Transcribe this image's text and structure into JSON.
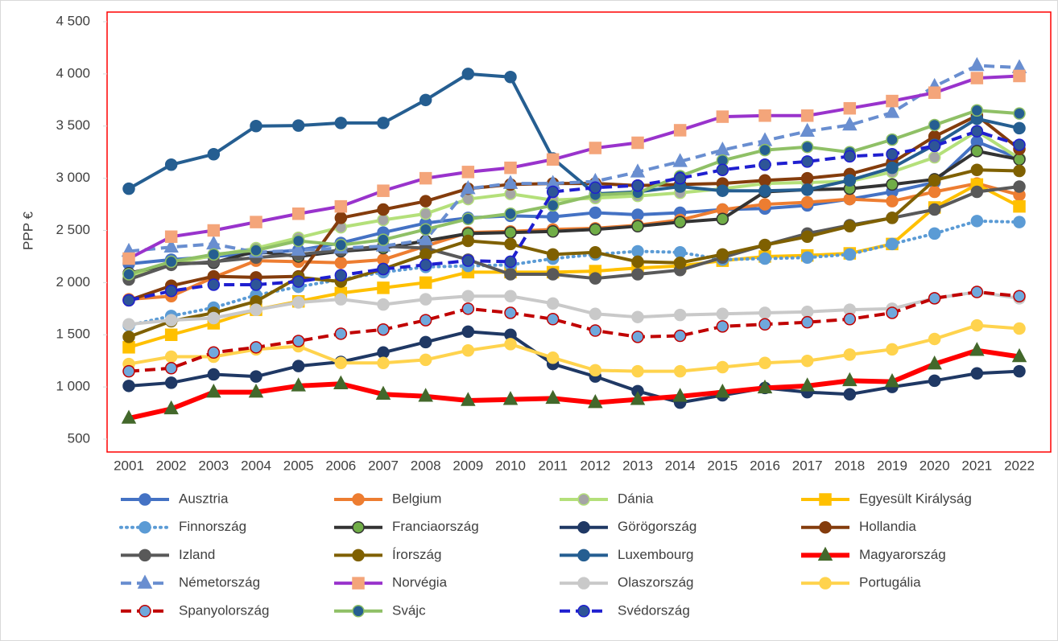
{
  "chart_data": {
    "type": "line",
    "y_label": "PPP €",
    "categories": [
      "2001",
      "2002",
      "2003",
      "2004",
      "2005",
      "2006",
      "2007",
      "2008",
      "2009",
      "2010",
      "2011",
      "2012",
      "2013",
      "2014",
      "2015",
      "2016",
      "2017",
      "2018",
      "2019",
      "2020",
      "2021",
      "2022"
    ],
    "ylim": [
      500,
      4500
    ],
    "yticks": [
      500,
      {
        "value": 1000,
        "label": "1 000"
      },
      {
        "value": 1500,
        "label": "1 500"
      },
      {
        "value": 2000,
        "label": "2 000"
      },
      {
        "value": 2500,
        "label": "2 500"
      },
      {
        "value": 3000,
        "label": "3 000"
      },
      {
        "value": 3500,
        "label": "3 500"
      },
      {
        "value": 4000,
        "label": "4 000"
      },
      {
        "value": 4500,
        "label": "4 500"
      }
    ],
    "legend": "bottom",
    "series": [
      {
        "name": "Ausztria",
        "color": "#4472c4",
        "marker": "circle",
        "marker_color": "#4472c4",
        "values": [
          2180,
          2220,
          2250,
          2280,
          2310,
          2380,
          2480,
          2570,
          2620,
          2640,
          2630,
          2670,
          2650,
          2670,
          2700,
          2710,
          2740,
          2800,
          2870,
          2960,
          3350,
          3190
        ]
      },
      {
        "name": "Belgium",
        "color": "#ed7d31",
        "marker": "circle",
        "marker_color": "#ed7d31",
        "values": [
          1840,
          1870,
          2050,
          2210,
          2200,
          2190,
          2220,
          2350,
          2480,
          2490,
          2510,
          2520,
          2550,
          2600,
          2700,
          2750,
          2770,
          2800,
          2780,
          2870,
          2950,
          2840
        ]
      },
      {
        "name": "Dánia",
        "color": "#b4e07a",
        "marker": "circle",
        "marker_color": "#a5a5a5",
        "values": [
          2050,
          2180,
          2260,
          2330,
          2430,
          2530,
          2600,
          2660,
          2800,
          2850,
          2790,
          2810,
          2830,
          2860,
          2900,
          2950,
          2960,
          2970,
          3060,
          3200,
          3450,
          3190
        ]
      },
      {
        "name": "Egyesült Királyság",
        "color": "#ffc000",
        "marker": "square",
        "marker_color": "#ffc000",
        "values": [
          1380,
          1500,
          1610,
          1740,
          1820,
          1900,
          1950,
          2000,
          2100,
          2100,
          2100,
          2110,
          2140,
          2160,
          2210,
          2250,
          2260,
          2280,
          2370,
          2720,
          2940,
          2730
        ]
      },
      {
        "name": "Finnország",
        "color": "#5b9bd5",
        "dash": "dot",
        "marker": "circle",
        "marker_color": "#5b9bd5",
        "values": [
          1590,
          1680,
          1760,
          1880,
          1960,
          2030,
          2100,
          2150,
          2160,
          2170,
          2230,
          2270,
          2300,
          2290,
          2220,
          2230,
          2240,
          2270,
          2370,
          2470,
          2590,
          2580
        ]
      },
      {
        "name": "Franciaország",
        "color": "#333333",
        "marker": "circle",
        "marker_color": "#70ad47",
        "values": [
          2090,
          2180,
          2190,
          2300,
          2250,
          2300,
          2330,
          2400,
          2470,
          2480,
          2490,
          2510,
          2540,
          2580,
          2610,
          2870,
          2890,
          2900,
          2940,
          2990,
          3260,
          3180
        ]
      },
      {
        "name": "Görögország",
        "color": "#1f3864",
        "marker": "circle",
        "marker_color": "#1f3864",
        "values": [
          1010,
          1040,
          1120,
          1100,
          1200,
          1240,
          1330,
          1430,
          1530,
          1500,
          1220,
          1100,
          960,
          850,
          920,
          990,
          950,
          930,
          1000,
          1060,
          1130,
          1150
        ]
      },
      {
        "name": "Hollandia",
        "color": "#843c0c",
        "marker": "circle",
        "marker_color": "#843c0c",
        "values": [
          1830,
          1970,
          2060,
          2050,
          2060,
          2620,
          2700,
          2780,
          2900,
          2940,
          2950,
          2950,
          2930,
          2940,
          2950,
          2980,
          3000,
          3040,
          3150,
          3400,
          3600,
          3280
        ]
      },
      {
        "name": "Izland",
        "color": "#595959",
        "marker": "circle",
        "marker_color": "#595959",
        "values": [
          2030,
          2170,
          2200,
          2240,
          2270,
          2310,
          2350,
          2330,
          2220,
          2080,
          2080,
          2040,
          2080,
          2120,
          2240,
          2360,
          2470,
          2550,
          2620,
          2700,
          2870,
          2920
        ]
      },
      {
        "name": "Írország",
        "color": "#7f6000",
        "marker": "circle",
        "marker_color": "#7f6000",
        "values": [
          1480,
          1630,
          1710,
          1820,
          2050,
          2010,
          2130,
          2270,
          2400,
          2370,
          2270,
          2290,
          2200,
          2190,
          2270,
          2360,
          2440,
          2540,
          2620,
          2980,
          3080,
          3070
        ]
      },
      {
        "name": "Luxembourg",
        "color": "#255e91",
        "marker": "circle",
        "marker_color": "#255e91",
        "values": [
          2900,
          3130,
          3230,
          3500,
          3505,
          3530,
          3530,
          3750,
          4000,
          3970,
          3190,
          2850,
          2870,
          2920,
          2880,
          2880,
          2890,
          2980,
          3100,
          3320,
          3570,
          3480
        ]
      },
      {
        "name": "Magyarország",
        "color": "#ff0000",
        "width": 6,
        "marker": "triangle",
        "marker_color": "#43682b",
        "values": [
          700,
          790,
          950,
          950,
          1010,
          1030,
          930,
          910,
          870,
          880,
          890,
          850,
          880,
          910,
          950,
          990,
          1010,
          1060,
          1050,
          1220,
          1350,
          1290
        ]
      },
      {
        "name": "Németország",
        "color": "#698ed0",
        "dash": "dash",
        "marker": "triangle",
        "marker_color": "#698ed0",
        "values": [
          2300,
          2340,
          2370,
          2290,
          2310,
          2330,
          2350,
          2410,
          2900,
          2950,
          2950,
          2970,
          3060,
          3160,
          3270,
          3360,
          3450,
          3510,
          3630,
          3880,
          4080,
          4060
        ]
      },
      {
        "name": "Norvégia",
        "color": "#9933cc",
        "marker": "square",
        "marker_color": "#f4a57a",
        "values": [
          2230,
          2440,
          2500,
          2580,
          2660,
          2730,
          2880,
          3000,
          3060,
          3100,
          3180,
          3290,
          3340,
          3460,
          3590,
          3600,
          3600,
          3670,
          3740,
          3820,
          3960,
          3980
        ]
      },
      {
        "name": "Olaszország",
        "color": "#c9c9c9",
        "marker": "circle",
        "marker_color": "#c9c9c9",
        "values": [
          1600,
          1640,
          1660,
          1740,
          1810,
          1840,
          1790,
          1840,
          1870,
          1870,
          1800,
          1700,
          1670,
          1690,
          1700,
          1710,
          1720,
          1740,
          1750,
          1850,
          1910,
          1850
        ]
      },
      {
        "name": "Portugália",
        "color": "#ffd34d",
        "marker": "circle",
        "marker_color": "#ffd34d",
        "values": [
          1220,
          1290,
          1290,
          1360,
          1390,
          1230,
          1230,
          1260,
          1350,
          1410,
          1280,
          1160,
          1150,
          1150,
          1190,
          1230,
          1250,
          1310,
          1360,
          1460,
          1590,
          1560
        ]
      },
      {
        "name": "Spanyolország",
        "color": "#c00000",
        "dash": "dash",
        "marker": "circle",
        "marker_color": "#6fa8dc",
        "values": [
          1150,
          1180,
          1330,
          1380,
          1440,
          1510,
          1550,
          1640,
          1750,
          1710,
          1650,
          1540,
          1480,
          1490,
          1580,
          1600,
          1620,
          1650,
          1710,
          1850,
          1910,
          1870
        ]
      },
      {
        "name": "Svájc",
        "color": "#8fc066",
        "marker": "circle",
        "marker_color": "#255e91",
        "values": [
          2080,
          2200,
          2270,
          2310,
          2400,
          2360,
          2410,
          2510,
          2610,
          2660,
          2740,
          2840,
          2860,
          3020,
          3170,
          3270,
          3300,
          3250,
          3370,
          3510,
          3650,
          3620
        ]
      },
      {
        "name": "Svédország",
        "color": "#1f1fd0",
        "dash": "dash",
        "marker": "circle",
        "marker_color": "#2e5597",
        "values": [
          1830,
          1920,
          1980,
          1980,
          2010,
          2070,
          2130,
          2170,
          2210,
          2200,
          2870,
          2910,
          2930,
          3000,
          3080,
          3130,
          3160,
          3210,
          3230,
          3310,
          3450,
          3320
        ]
      }
    ]
  }
}
